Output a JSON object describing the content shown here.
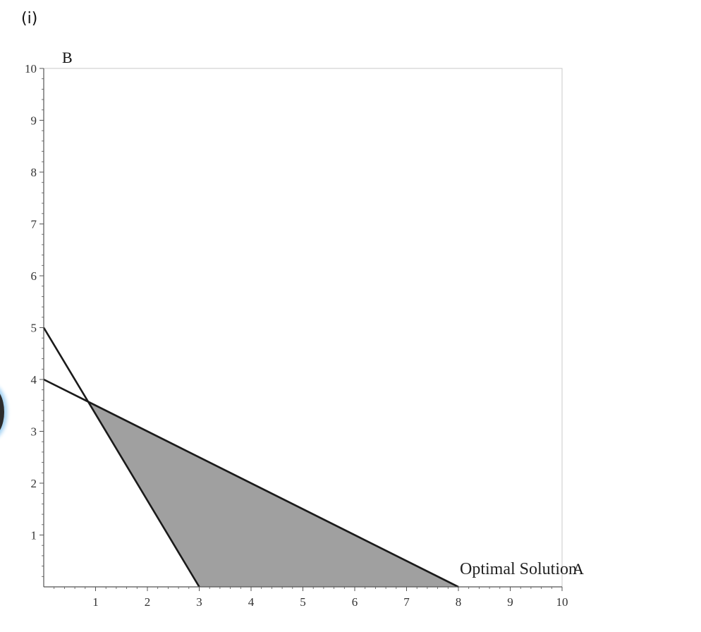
{
  "page": {
    "part_label": "(i)"
  },
  "chart_data": {
    "type": "area",
    "xlabel": "A",
    "ylabel": "B",
    "xlim": [
      0,
      10
    ],
    "ylim": [
      0,
      10
    ],
    "x_ticks": [
      1,
      2,
      3,
      4,
      5,
      6,
      7,
      8,
      9,
      10
    ],
    "y_ticks": [
      1,
      2,
      3,
      4,
      5,
      6,
      7,
      8,
      9,
      10
    ],
    "lines": [
      {
        "x": [
          0,
          3
        ],
        "y": [
          5,
          0
        ]
      },
      {
        "x": [
          0,
          8
        ],
        "y": [
          4,
          0
        ]
      }
    ],
    "feasible_region": {
      "x": [
        0.857,
        3,
        8
      ],
      "y": [
        3.571,
        0,
        0
      ],
      "color": "#a0a0a0"
    },
    "annotation": {
      "text": "Optimal Solution",
      "x": 8,
      "y": 0
    },
    "grid": false,
    "colors": {
      "line": "#1a1a1a",
      "frame": "#c8c8c8",
      "axis": "#555555"
    }
  }
}
